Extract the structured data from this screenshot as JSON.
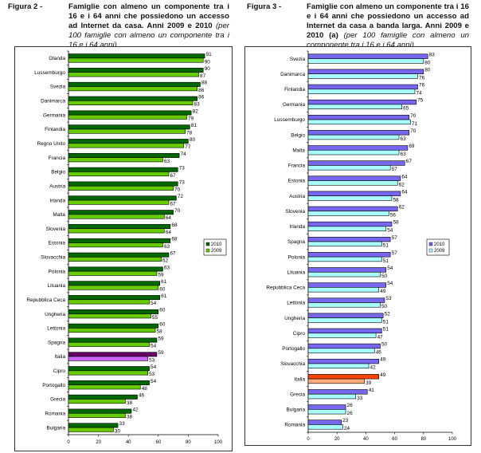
{
  "figures": [
    {
      "label": "Figura 2 -",
      "title_bold": "Famiglie con almeno un componente tra i 16 e i 64 anni che possiedono un accesso ad Internet da casa. Anni 2009 e 2010",
      "title_italic": "(per 100 famiglie con almeno un componente tra i 16 e i 64 anni)"
    },
    {
      "label": "Figura 3 -",
      "title_bold": "Famiglie con almeno un componente tra i 16 e i 64 anni che possiedono un accesso ad Internet da casa a banda larga. Anni 2009 e 2010 (a)",
      "title_italic": "(per 100 famiglie con almeno un componente tra i 16 e i 64 anni)"
    }
  ],
  "chart_data": [
    {
      "type": "bar",
      "orientation": "horizontal",
      "title": "Figura 2 - Famiglie con almeno un componente tra i 16 e i 64 anni che possiedono un accesso ad Internet da casa. Anni 2009 e 2010 (per 100 famiglie con almeno un componente tra i 16 e i 64 anni)",
      "categories": [
        "Olanda",
        "Lussemburgo",
        "Svezia",
        "Danimarca",
        "Germania",
        "Finlandia",
        "Regno Unito",
        "Francia",
        "Belgio",
        "Austria",
        "Irlanda",
        "Malta",
        "Slovenia",
        "Estonia",
        "Slovacchia",
        "Polonia",
        "Lituania",
        "Repubblica Ceca",
        "Ungheria",
        "Lettonia",
        "Spagna",
        "Italia",
        "Cipro",
        "Portogallo",
        "Grecia",
        "Romania",
        "Bulgaria"
      ],
      "series": [
        {
          "name": "2010",
          "values": [
            91,
            90,
            88,
            86,
            82,
            81,
            80,
            74,
            73,
            73,
            72,
            70,
            68,
            68,
            67,
            63,
            61,
            61,
            60,
            60,
            59,
            59,
            54,
            54,
            46,
            42,
            33
          ]
        },
        {
          "name": "2009",
          "values": [
            90,
            87,
            86,
            83,
            79,
            78,
            77,
            63,
            67,
            70,
            67,
            64,
            64,
            63,
            62,
            59,
            60,
            54,
            55,
            58,
            54,
            53,
            53,
            48,
            38,
            38,
            30
          ]
        }
      ],
      "highlight": "Italia",
      "colors": {
        "2010": "#006600",
        "2009": "#66cc00",
        "highlight_2010": "#660066",
        "highlight_2009": "#cc66ff"
      },
      "xlim": [
        0,
        100
      ],
      "xticks": [
        "0",
        "20",
        "40",
        "60",
        "80",
        "100"
      ],
      "legend": [
        "2010",
        "2009"
      ],
      "legend_position": "right"
    },
    {
      "type": "bar",
      "orientation": "horizontal",
      "title": "Figura 3 - Famiglie con almeno un componente tra i 16 e i 64 anni che possiedono un accesso ad Internet da casa a banda larga. Anni 2009 e 2010 (a) (per 100 famiglie con almeno un componente tra i 16 e i 64 anni)",
      "categories": [
        "Svezia",
        "Danimarca",
        "Finlandia",
        "Germania",
        "Lussemburgo",
        "Belgio",
        "Malta",
        "Francia",
        "Estonia",
        "Austria",
        "Slovenia",
        "Irlanda",
        "Spagna",
        "Polonia",
        "Lituania",
        "Repubblica Ceca",
        "Lettonia",
        "Ungheria",
        "Cipro",
        "Portogallo",
        "Slovacchia",
        "Italia",
        "Grecia",
        "Bulgaria",
        "Romania"
      ],
      "series": [
        {
          "name": "2010",
          "values": [
            83,
            80,
            76,
            75,
            70,
            70,
            69,
            67,
            64,
            64,
            62,
            58,
            57,
            57,
            54,
            54,
            53,
            52,
            51,
            50,
            49,
            49,
            41,
            26,
            23
          ]
        },
        {
          "name": "2009",
          "values": [
            80,
            76,
            74,
            65,
            71,
            63,
            63,
            57,
            62,
            58,
            56,
            54,
            51,
            51,
            50,
            49,
            50,
            51,
            47,
            46,
            42,
            39,
            33,
            26,
            24
          ]
        }
      ],
      "highlight": "Italia",
      "colors": {
        "2010": "#7766ee",
        "2009": "#aaffff",
        "highlight_2010": "#ff4400",
        "highlight_2009": "#ffaa77"
      },
      "xlim": [
        0,
        100
      ],
      "xticks": [
        "0",
        "20",
        "40",
        "60",
        "80",
        "100"
      ],
      "legend": [
        "2010",
        "2009"
      ],
      "legend_position": "right"
    }
  ]
}
